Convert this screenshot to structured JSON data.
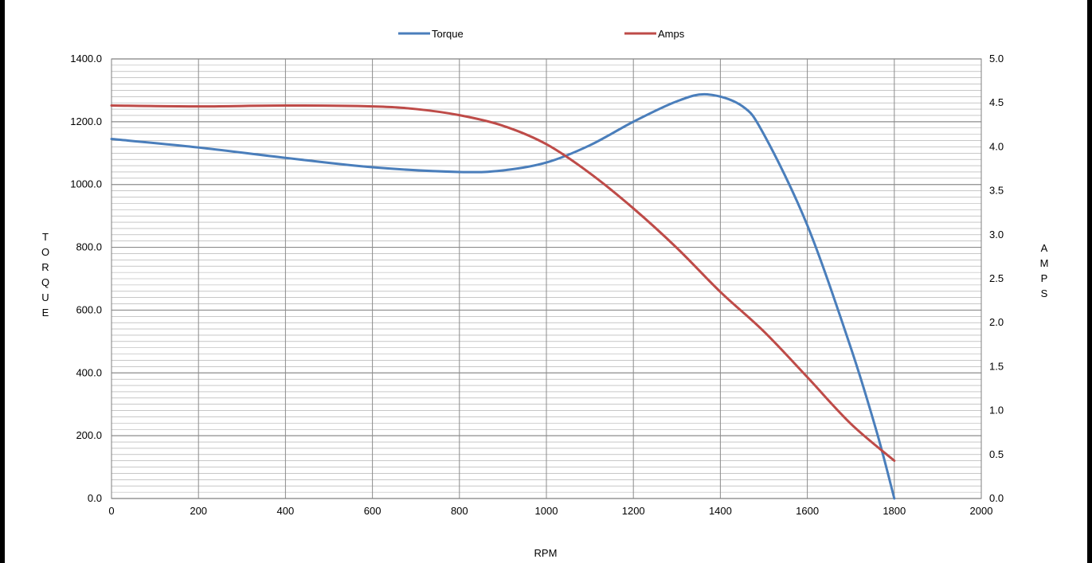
{
  "chart_data": {
    "type": "line",
    "title": "",
    "xlabel": "RPM",
    "ylabel_left": "TORQUE",
    "ylabel_right": "AMPS",
    "xlim": [
      0,
      2000
    ],
    "ylim_left": [
      0,
      1400
    ],
    "ylim_right": [
      0,
      5
    ],
    "x_ticks": [
      0,
      200,
      400,
      600,
      800,
      1000,
      1200,
      1400,
      1600,
      1800,
      2000
    ],
    "y_left_ticks": [
      "0.0",
      "200.0",
      "400.0",
      "600.0",
      "800.0",
      "1000.0",
      "1200.0",
      "1400.0"
    ],
    "y_right_ticks": [
      "0.0",
      "0.5",
      "1.0",
      "1.5",
      "2.0",
      "2.5",
      "3.0",
      "3.5",
      "4.0",
      "4.5",
      "5.0"
    ],
    "grid": true,
    "legend_position": "top-center",
    "series": [
      {
        "name": "Torque",
        "axis": "left",
        "color": "#4a7ebb",
        "x": [
          0,
          200,
          400,
          600,
          800,
          900,
          1000,
          1100,
          1200,
          1300,
          1370,
          1450,
          1500,
          1600,
          1700,
          1760,
          1800
        ],
        "y": [
          1145,
          1118,
          1085,
          1055,
          1040,
          1045,
          1070,
          1125,
          1200,
          1265,
          1287,
          1250,
          1160,
          870,
          480,
          210,
          0
        ]
      },
      {
        "name": "Amps",
        "axis": "right",
        "color": "#be4b48",
        "x": [
          0,
          200,
          400,
          600,
          700,
          800,
          900,
          1000,
          1100,
          1200,
          1300,
          1400,
          1500,
          1600,
          1700,
          1800
        ],
        "y": [
          4.47,
          4.46,
          4.47,
          4.46,
          4.43,
          4.36,
          4.24,
          4.03,
          3.7,
          3.3,
          2.85,
          2.35,
          1.9,
          1.38,
          0.85,
          0.43
        ]
      }
    ]
  }
}
